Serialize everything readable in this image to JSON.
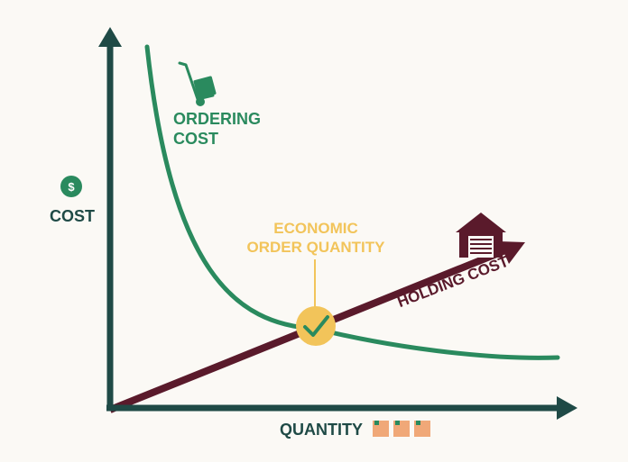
{
  "colors": {
    "background": "#fbf9f5",
    "axis": "#1f4a46",
    "ordering_cost": "#2a8a5e",
    "holding_cost": "#5a1a2b",
    "eoq": "#f2c45a",
    "boxes": "#f0a878"
  },
  "axes": {
    "y_label": "COST",
    "x_label": "QUANTITY",
    "y_icon": "dollar-coin-icon",
    "x_icon": "boxes-icon",
    "y_icon_text": "$"
  },
  "curves": {
    "ordering_cost_label_line1": "ORDERING",
    "ordering_cost_label_line2": "COST",
    "ordering_cost_icon": "hand-truck-icon",
    "holding_cost_label": "HOLDING COST",
    "holding_cost_icon": "warehouse-icon"
  },
  "eoq": {
    "label_line1": "ECONOMIC",
    "label_line2": "ORDER QUANTITY",
    "icon": "checkmark-icon"
  }
}
